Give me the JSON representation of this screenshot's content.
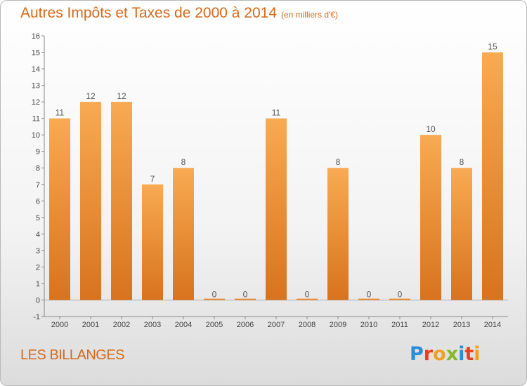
{
  "header": {
    "title": "Autres Impôts et Taxes de 2000 à 2014",
    "subtitle": "(en milliers d'€)"
  },
  "footer": {
    "town": "LES BILLANGES",
    "logo_text": "Proxiti"
  },
  "chart_data": {
    "type": "bar",
    "title": "Autres Impôts et Taxes de 2000 à 2014",
    "subtitle": "(en milliers d'€)",
    "categories": [
      "2000",
      "2001",
      "2002",
      "2003",
      "2004",
      "2005",
      "2006",
      "2007",
      "2008",
      "2009",
      "2010",
      "2011",
      "2012",
      "2013",
      "2014"
    ],
    "values": [
      11,
      12,
      12,
      7,
      8,
      0,
      0,
      11,
      0,
      8,
      0,
      0,
      10,
      8,
      15
    ],
    "ylim": [
      -1,
      16
    ],
    "yticks": [
      -1,
      0,
      1,
      2,
      3,
      4,
      5,
      6,
      7,
      8,
      9,
      10,
      11,
      12,
      13,
      14,
      15,
      16
    ],
    "grid": false,
    "colors": {
      "bar_light": "#f7a74e",
      "bar_dark": "#d9741f",
      "label": "#555555"
    }
  }
}
